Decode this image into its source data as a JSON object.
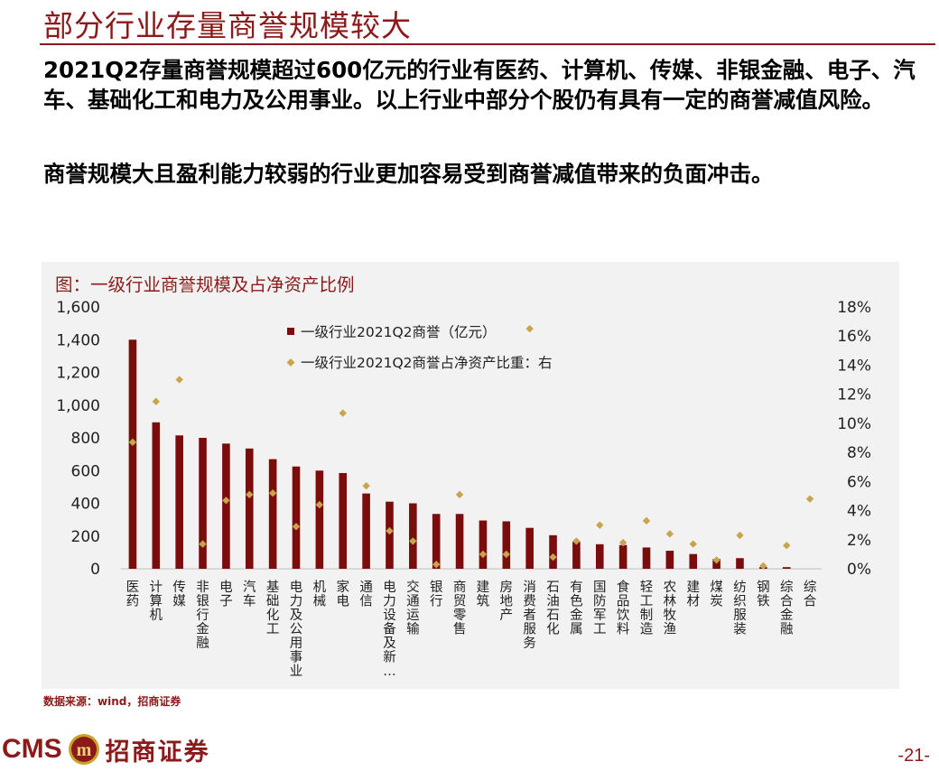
{
  "slide": {
    "title": "部分行业存量商誉规模较大",
    "para1": "2021Q2存量商誉规模超过600亿元的行业有医药、计算机、传媒、非银金融、电子、汽车、基础化工和电力及公用事业。以上行业中部分个股仍有具有一定的商誉减值风险。",
    "para2": "商誉规模大且盈利能力较弱的行业更加容易受到商誉减值带来的负面冲击。",
    "chart_title": "图：一级行业商誉规模及占净资产比例",
    "source": "数据来源：wind，招商证券",
    "brand_en": "CMS",
    "brand_cn": "招商证券",
    "emblem_text": "m",
    "page_number": "-21-"
  },
  "chart_data": {
    "type": "bar",
    "categories": [
      "医药",
      "计算机",
      "传媒",
      "非银行金融",
      "电子",
      "汽车",
      "基础化工",
      "电力及公用事业",
      "机械",
      "家电",
      "通信",
      "电力设备及新…",
      "交通运输",
      "银行",
      "商贸零售",
      "建筑",
      "房地产",
      "消费者服务",
      "石油石化",
      "有色金属",
      "国防军工",
      "食品饮料",
      "轻工制造",
      "农林牧渔",
      "建材",
      "煤炭",
      "纺织服装",
      "钢铁",
      "综合金融",
      "综合"
    ],
    "series": [
      {
        "name": "一级行业2021Q2商誉（亿元）",
        "type": "bar",
        "axis": "left",
        "color": "#7b0c0c",
        "values": [
          1400,
          895,
          815,
          800,
          765,
          735,
          670,
          625,
          600,
          585,
          460,
          410,
          400,
          335,
          335,
          295,
          290,
          250,
          205,
          165,
          150,
          145,
          130,
          110,
          90,
          60,
          65,
          10,
          10,
          0
        ]
      },
      {
        "name": "一级行业2021Q2商誉占净资产比重：右",
        "type": "scatter",
        "axis": "right",
        "color": "#c8a44d",
        "values": [
          8.7,
          11.5,
          13.0,
          1.7,
          4.7,
          5.1,
          5.2,
          2.9,
          4.4,
          10.7,
          5.7,
          2.6,
          1.9,
          0.3,
          5.1,
          1.0,
          1.0,
          16.5,
          0.8,
          1.9,
          3.0,
          1.8,
          3.3,
          2.4,
          1.7,
          0.6,
          2.3,
          0.2,
          1.6,
          4.8
        ]
      }
    ],
    "y_left": {
      "min": 0,
      "max": 1600,
      "ticks": [
        "0",
        "200",
        "400",
        "600",
        "800",
        "1,000",
        "1,200",
        "1,400",
        "1,600"
      ]
    },
    "y_right": {
      "min": 0,
      "max": 18,
      "ticks": [
        "0%",
        "2%",
        "4%",
        "6%",
        "8%",
        "10%",
        "12%",
        "14%",
        "16%",
        "18%"
      ]
    },
    "legend_position": "top-center",
    "grid": false
  }
}
